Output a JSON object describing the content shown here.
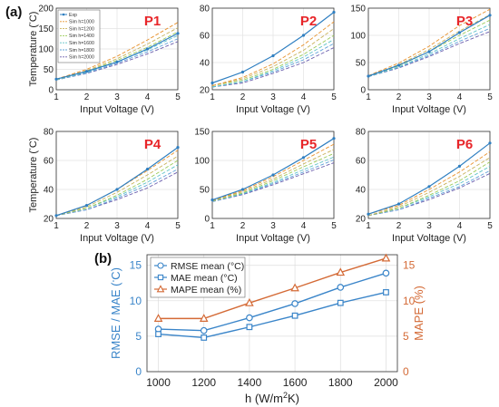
{
  "labels": {
    "a": "(a)",
    "b": "(b)"
  },
  "colors": {
    "exp": "#2f7fc1",
    "sim": [
      "#e8932f",
      "#c9b25a",
      "#9ccb5a",
      "#5fc4c8",
      "#5fa0d8",
      "#6b5fae"
    ],
    "rmse": "#3a85c9",
    "mape": "#d46a36",
    "bgrid": "#dddddd"
  },
  "chart_data": [
    {
      "type": "line",
      "id": "P1",
      "title": "P1",
      "xlabel": "Input Voltage (V)",
      "ylabel": "Temperature (°C)",
      "x": [
        1,
        2,
        3,
        4,
        5
      ],
      "xlim": [
        1,
        5
      ],
      "ylim": [
        0,
        200
      ],
      "xticks": [
        1,
        2,
        3,
        4,
        5
      ],
      "yticks": [
        0,
        50,
        100,
        150,
        200
      ],
      "grid": true,
      "legend": {
        "placement": "top-left",
        "entries": [
          "Exp",
          "Sim h=1000",
          "Sim h=1200",
          "Sim h=1400",
          "Sim h=1600",
          "Sim h=1800",
          "Sim h=2000"
        ]
      },
      "series": [
        {
          "name": "Exp",
          "values": [
            26,
            45,
            68,
            100,
            138
          ]
        },
        {
          "name": "Sim h=1000",
          "values": [
            26,
            50,
            82,
            122,
            165
          ]
        },
        {
          "name": "Sim h=1200",
          "values": [
            25,
            47,
            76,
            112,
            152
          ]
        },
        {
          "name": "Sim h=1400",
          "values": [
            25,
            45,
            72,
            104,
            142
          ]
        },
        {
          "name": "Sim h=1600",
          "values": [
            24,
            43,
            68,
            98,
            133
          ]
        },
        {
          "name": "Sim h=1800",
          "values": [
            24,
            41,
            65,
            93,
            125
          ]
        },
        {
          "name": "Sim h=2000",
          "values": [
            24,
            40,
            62,
            88,
            118
          ]
        }
      ]
    },
    {
      "type": "line",
      "id": "P2",
      "title": "P2",
      "xlabel": "Input Voltage (V)",
      "ylabel": "",
      "x": [
        1,
        2,
        3,
        4,
        5
      ],
      "xlim": [
        1,
        5
      ],
      "ylim": [
        20,
        80
      ],
      "xticks": [
        1,
        2,
        3,
        4,
        5
      ],
      "yticks": [
        20,
        40,
        60,
        80
      ],
      "grid": true,
      "series": [
        {
          "name": "Exp",
          "values": [
            25,
            33,
            45,
            60,
            77
          ]
        },
        {
          "name": "Sim h=1000",
          "values": [
            23,
            29,
            39,
            53,
            70
          ]
        },
        {
          "name": "Sim h=1200",
          "values": [
            23,
            28,
            37,
            49,
            65
          ]
        },
        {
          "name": "Sim h=1400",
          "values": [
            23,
            27,
            35,
            46,
            60
          ]
        },
        {
          "name": "Sim h=1600",
          "values": [
            22,
            26,
            34,
            44,
            57
          ]
        },
        {
          "name": "Sim h=1800",
          "values": [
            22,
            26,
            33,
            42,
            54
          ]
        },
        {
          "name": "Sim h=2000",
          "values": [
            22,
            25,
            32,
            40,
            51
          ]
        }
      ]
    },
    {
      "type": "line",
      "id": "P3",
      "title": "P3",
      "xlabel": "Input Voltage (V)",
      "ylabel": "",
      "x": [
        1,
        2,
        3,
        4,
        5
      ],
      "xlim": [
        1,
        5
      ],
      "ylim": [
        0,
        150
      ],
      "xticks": [
        1,
        2,
        3,
        4,
        5
      ],
      "yticks": [
        0,
        50,
        100,
        150
      ],
      "grid": true,
      "series": [
        {
          "name": "Exp",
          "values": [
            25,
            45,
            70,
            105,
            137
          ]
        },
        {
          "name": "Sim h=1000",
          "values": [
            26,
            49,
            80,
            118,
            148
          ]
        },
        {
          "name": "Sim h=1200",
          "values": [
            25,
            46,
            74,
            108,
            138
          ]
        },
        {
          "name": "Sim h=1400",
          "values": [
            25,
            44,
            70,
            100,
            128
          ]
        },
        {
          "name": "Sim h=1600",
          "values": [
            24,
            42,
            66,
            94,
            120
          ]
        },
        {
          "name": "Sim h=1800",
          "values": [
            24,
            41,
            63,
            89,
            113
          ]
        },
        {
          "name": "Sim h=2000",
          "values": [
            24,
            40,
            61,
            85,
            107
          ]
        }
      ]
    },
    {
      "type": "line",
      "id": "P4",
      "title": "P4",
      "xlabel": "Input Voltage (V)",
      "ylabel": "Temperature (°C)",
      "x": [
        1,
        2,
        3,
        4,
        5
      ],
      "xlim": [
        1,
        5
      ],
      "ylim": [
        20,
        80
      ],
      "xticks": [
        1,
        2,
        3,
        4,
        5
      ],
      "yticks": [
        20,
        40,
        60,
        80
      ],
      "grid": true,
      "series": [
        {
          "name": "Exp",
          "values": [
            22,
            29,
            40,
            54,
            69
          ]
        },
        {
          "name": "Sim h=1000",
          "values": [
            22,
            29,
            40,
            53,
            67
          ]
        },
        {
          "name": "Sim h=1200",
          "values": [
            22,
            28,
            38,
            50,
            63
          ]
        },
        {
          "name": "Sim h=1400",
          "values": [
            22,
            27,
            36,
            47,
            60
          ]
        },
        {
          "name": "Sim h=1600",
          "values": [
            22,
            27,
            35,
            45,
            57
          ]
        },
        {
          "name": "Sim h=1800",
          "values": [
            22,
            26,
            34,
            43,
            54
          ]
        },
        {
          "name": "Sim h=2000",
          "values": [
            22,
            26,
            33,
            41,
            52
          ]
        }
      ]
    },
    {
      "type": "line",
      "id": "P5",
      "title": "P5",
      "xlabel": "Input Voltage (V)",
      "ylabel": "",
      "x": [
        1,
        2,
        3,
        4,
        5
      ],
      "xlim": [
        1,
        5
      ],
      "ylim": [
        0,
        150
      ],
      "xticks": [
        1,
        2,
        3,
        4,
        5
      ],
      "yticks": [
        0,
        50,
        100,
        150
      ],
      "grid": true,
      "series": [
        {
          "name": "Exp",
          "values": [
            32,
            50,
            75,
            105,
            138
          ]
        },
        {
          "name": "Sim h=1000",
          "values": [
            31,
            48,
            72,
            100,
            128
          ]
        },
        {
          "name": "Sim h=1200",
          "values": [
            31,
            46,
            68,
            94,
            119
          ]
        },
        {
          "name": "Sim h=1400",
          "values": [
            30,
            44,
            65,
            89,
            112
          ]
        },
        {
          "name": "Sim h=1600",
          "values": [
            30,
            43,
            62,
            84,
            106
          ]
        },
        {
          "name": "Sim h=1800",
          "values": [
            29,
            42,
            60,
            80,
            101
          ]
        },
        {
          "name": "Sim h=2000",
          "values": [
            29,
            41,
            58,
            77,
            96
          ]
        }
      ]
    },
    {
      "type": "line",
      "id": "P6",
      "title": "P6",
      "xlabel": "Input Voltage (V)",
      "ylabel": "",
      "x": [
        1,
        2,
        3,
        4,
        5
      ],
      "xlim": [
        1,
        5
      ],
      "ylim": [
        20,
        80
      ],
      "xticks": [
        1,
        2,
        3,
        4,
        5
      ],
      "yticks": [
        20,
        40,
        60,
        80
      ],
      "grid": true,
      "series": [
        {
          "name": "Exp",
          "values": [
            23,
            30,
            42,
            56,
            72
          ]
        },
        {
          "name": "Sim h=1000",
          "values": [
            23,
            29,
            40,
            52,
            66
          ]
        },
        {
          "name": "Sim h=1200",
          "values": [
            22,
            28,
            38,
            49,
            62
          ]
        },
        {
          "name": "Sim h=1400",
          "values": [
            22,
            27,
            36,
            46,
            59
          ]
        },
        {
          "name": "Sim h=1600",
          "values": [
            22,
            27,
            35,
            44,
            56
          ]
        },
        {
          "name": "Sim h=1800",
          "values": [
            22,
            26,
            34,
            42,
            53
          ]
        },
        {
          "name": "Sim h=2000",
          "values": [
            22,
            26,
            33,
            41,
            51
          ]
        }
      ]
    },
    {
      "type": "line",
      "id": "b",
      "xlabel": "h (W/m²K)",
      "ylabel": "RMSE / MAE (°C)",
      "y2label": "MAPE (%)",
      "x": [
        1000,
        1200,
        1400,
        1600,
        1800,
        2000
      ],
      "xlim": [
        950,
        2050
      ],
      "ylim": [
        0,
        16.5
      ],
      "y2lim": [
        0,
        16.5
      ],
      "xticks": [
        1000,
        1200,
        1400,
        1600,
        1800,
        2000
      ],
      "yticks": [
        0,
        5,
        10,
        15
      ],
      "y2ticks": [
        0,
        5,
        10,
        15
      ],
      "grid": true,
      "legend": {
        "placement": "top-left",
        "entries": [
          "RMSE mean (°C)",
          "MAE mean (°C)",
          "MAPE mean (%)"
        ]
      },
      "series": [
        {
          "name": "RMSE mean (°C)",
          "axis": "left",
          "marker": "circle",
          "values": [
            6.0,
            5.8,
            7.6,
            9.6,
            11.9,
            13.9
          ]
        },
        {
          "name": "MAE mean (°C)",
          "axis": "left",
          "marker": "square",
          "values": [
            5.3,
            4.8,
            6.3,
            7.9,
            9.7,
            11.2
          ]
        },
        {
          "name": "MAPE mean (%)",
          "axis": "right",
          "marker": "triangle",
          "values": [
            7.5,
            7.5,
            9.7,
            11.8,
            14.0,
            16.0
          ]
        }
      ]
    }
  ]
}
